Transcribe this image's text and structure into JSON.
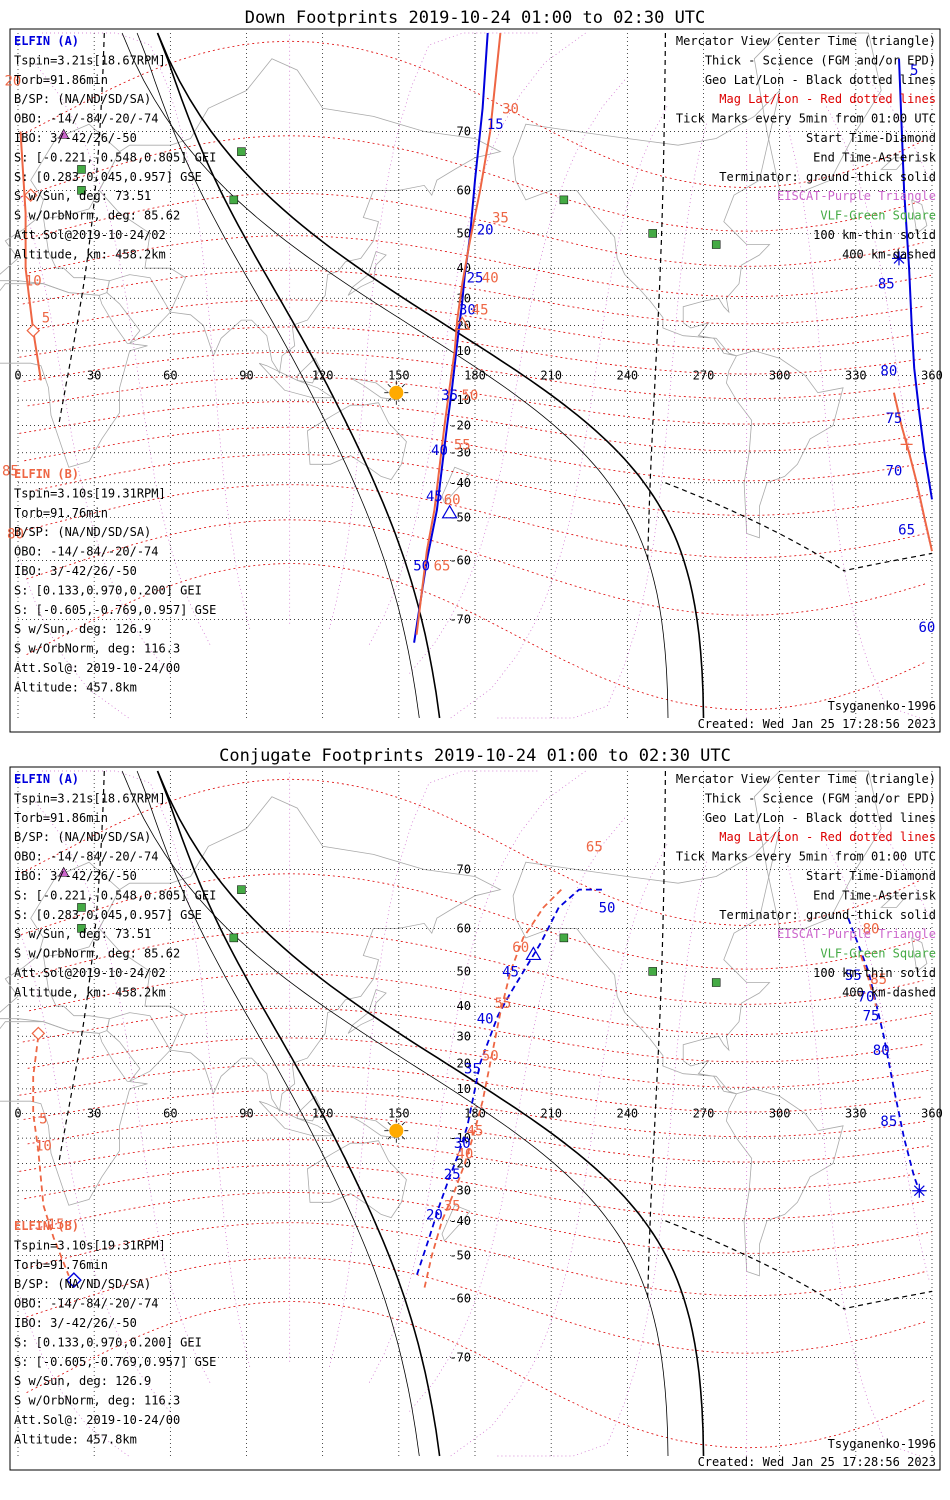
{
  "colors": {
    "elfin_a": "#0000dd",
    "elfin_b": "#ee6644",
    "geo_grid": "#000000",
    "mag_grid": "#dd0000",
    "eiscat": "#cc66cc",
    "vlf": "#44aa44",
    "sun": "#ffaa00",
    "coast": "#aaaaaa"
  },
  "chart_data": [
    {
      "type": "line",
      "title": "Down Footprints 2019-10-24 01:00 to 02:30 UTC",
      "projection": "mercator",
      "x_axis": {
        "range": [
          0,
          360
        ],
        "ticks": [
          0,
          30,
          60,
          90,
          120,
          150,
          180,
          210,
          240,
          270,
          300,
          330,
          360
        ]
      },
      "y_axis": {
        "range": [
          -80,
          80
        ],
        "ticks": [
          70,
          60,
          50,
          40,
          30,
          20,
          10,
          -10,
          -20,
          -30,
          -40,
          -50,
          -60,
          -70
        ]
      },
      "info_a": {
        "name": "ELFIN (A)",
        "lines": [
          "Tspin=3.21s[18.67RPM]",
          "Torb=91.86min",
          "B/SP: (NA/ND/SD/SA)",
          "OBO: -14/-84/-20/-74",
          "IBO: 3/-42/26/-50",
          "S: [-0.221,-0.548,0.805] GEI",
          "S: [0.283,0.045,0.957] GSE",
          "S w/Sun, deg: 73.51",
          "S w/OrbNorm, deg: 85.62",
          "Att.Sol@2019-10-24/02",
          "Altitude, km: 458.2km"
        ]
      },
      "info_b": {
        "name": "ELFIN (B)",
        "lines": [
          "Tspin=3.10s[19.31RPM]",
          "Torb=91.76min",
          "B/SP: (NA/ND/SD/SA)",
          "OBO: -14/-84/-20/-74",
          "IBO: 3/-42/26/-50",
          "S: [0.133,0.970,0.200] GEI",
          "S: [-0.605,-0.769,0.957] GSE",
          "S w/Sun, deg: 126.9",
          "S w/OrbNorm, deg: 116.3",
          "Att.Sol@: 2019-10-24/00",
          "Altitude: 457.8km"
        ]
      },
      "legend": [
        "Mercator View Center Time (triangle)",
        "Thick - Science (FGM and/or EPD)",
        "Geo Lat/Lon - Black dotted lines",
        "Mag Lat/Lon - Red dotted lines",
        "Tick Marks every 5min from 01:00 UTC",
        "Start Time-Diamond",
        "End Time-Asterisk",
        "Terminator: ground-thick solid",
        "EISCAT-Purple Triangle",
        "VLF-Green Square",
        "100 km-thin solid",
        "400 km-dashed"
      ],
      "model": "Tsyganenko-1996",
      "created": "Created: Wed Jan 25 17:28:56 2023",
      "series": [
        {
          "name": "ELFIN (A)",
          "color": "#0000dd",
          "style": "solid",
          "points": [
            [
              185,
              80
            ],
            [
              183,
              73
            ],
            [
              180,
              62
            ],
            [
              178,
              49
            ],
            [
              176,
              38
            ],
            [
              175,
              29
            ],
            [
              173,
              13
            ],
            [
              171,
              -5
            ],
            [
              169,
              -20
            ],
            [
              167,
              -35
            ],
            [
              165,
              -48
            ],
            [
              161,
              -60
            ],
            [
              156,
              -73
            ]
          ]
        },
        {
          "name": "ELFIN (A)",
          "color": "#0000dd",
          "style": "solid",
          "points": [
            [
              347,
              78
            ],
            [
              349,
              60
            ],
            [
              351,
              40
            ],
            [
              352,
              20
            ],
            [
              353,
              3
            ],
            [
              355,
              -15
            ],
            [
              357,
              -30
            ],
            [
              360,
              -45
            ]
          ]
        },
        {
          "name": "ELFIN (B)",
          "color": "#ee6644",
          "style": "solid",
          "points": [
            [
              190,
              80
            ],
            [
              186,
              70
            ],
            [
              182,
              60
            ],
            [
              178,
              48
            ],
            [
              175,
              35
            ],
            [
              173,
              22
            ],
            [
              172,
              10
            ],
            [
              170,
              -5
            ],
            [
              168,
              -20
            ],
            [
              166,
              -35
            ],
            [
              164,
              -48
            ],
            [
              161,
              -58
            ],
            [
              157,
              -72
            ]
          ]
        },
        {
          "name": "ELFIN (B)",
          "color": "#ee6644",
          "style": "solid",
          "points": [
            [
              1,
              70
            ],
            [
              3,
              55
            ],
            [
              3,
              40
            ],
            [
              6,
              18
            ],
            [
              8,
              5
            ],
            [
              9,
              -2
            ]
          ]
        },
        {
          "name": "ELFIN (B)",
          "color": "#ee6644",
          "style": "solid",
          "points": [
            [
              345,
              -7
            ],
            [
              348,
              -20
            ],
            [
              351,
              -30
            ],
            [
              354,
              -40
            ],
            [
              357,
              -50
            ],
            [
              360,
              -58
            ]
          ]
        }
      ],
      "tick_labels": [
        {
          "text": "15",
          "lon": 188,
          "lat": 71,
          "sat": "a"
        },
        {
          "text": "20",
          "lon": 184,
          "lat": 51,
          "sat": "a"
        },
        {
          "text": "25",
          "lon": 180,
          "lat": 37,
          "sat": "a"
        },
        {
          "text": "30",
          "lon": 177,
          "lat": 26,
          "sat": "a"
        },
        {
          "text": "35",
          "lon": 170,
          "lat": -8,
          "sat": "a"
        },
        {
          "text": "40",
          "lon": 166,
          "lat": -29,
          "sat": "a"
        },
        {
          "text": "45",
          "lon": 164,
          "lat": -44,
          "sat": "a"
        },
        {
          "text": "50",
          "lon": 159,
          "lat": -61,
          "sat": "a"
        },
        {
          "text": "85",
          "lon": 342,
          "lat": 35,
          "sat": "a"
        },
        {
          "text": "80",
          "lon": 343,
          "lat": 2,
          "sat": "a"
        },
        {
          "text": "75",
          "lon": 345,
          "lat": -17,
          "sat": "a"
        },
        {
          "text": "70",
          "lon": 345,
          "lat": -36,
          "sat": "a"
        },
        {
          "text": "65",
          "lon": 350,
          "lat": -53,
          "sat": "a"
        },
        {
          "text": "60",
          "lon": 358,
          "lat": -71,
          "sat": "a"
        },
        {
          "text": "30",
          "lon": 194,
          "lat": 73,
          "sat": "b"
        },
        {
          "text": "35",
          "lon": 190,
          "lat": 54,
          "sat": "b"
        },
        {
          "text": "40",
          "lon": 186,
          "lat": 37,
          "sat": "b"
        },
        {
          "text": "45",
          "lon": 182,
          "lat": 26,
          "sat": "b"
        },
        {
          "text": "50",
          "lon": 178,
          "lat": -8,
          "sat": "b"
        },
        {
          "text": "55",
          "lon": 175,
          "lat": -27,
          "sat": "b"
        },
        {
          "text": "60",
          "lon": 171,
          "lat": -45,
          "sat": "b"
        },
        {
          "text": "65",
          "lon": 167,
          "lat": -61,
          "sat": "b"
        },
        {
          "text": "20",
          "lon": -2,
          "lat": 76,
          "sat": "b"
        },
        {
          "text": "10",
          "lon": 6,
          "lat": 36,
          "sat": "b"
        },
        {
          "text": "5",
          "lon": 11,
          "lat": 23,
          "sat": "b"
        },
        {
          "text": "85",
          "lon": -3,
          "lat": -36,
          "sat": "b"
        },
        {
          "text": "80",
          "lon": -1,
          "lat": -54,
          "sat": "b"
        },
        {
          "text": "5",
          "lon": 353,
          "lat": 77,
          "sat": "a"
        }
      ]
    },
    {
      "type": "line",
      "title": "Conjugate Footprints 2019-10-24 01:00 to 02:30 UTC",
      "projection": "mercator",
      "x_axis": {
        "range": [
          0,
          360
        ],
        "ticks": [
          0,
          30,
          60,
          90,
          120,
          150,
          180,
          210,
          240,
          270,
          300,
          330,
          360
        ]
      },
      "y_axis": {
        "range": [
          -80,
          80
        ],
        "ticks": [
          70,
          60,
          50,
          40,
          30,
          20,
          10,
          -10,
          -20,
          -30,
          -40,
          -50,
          -60,
          -70
        ]
      },
      "info_a": {
        "name": "ELFIN (A)",
        "lines": [
          "Tspin=3.21s[18.67RPM]",
          "Torb=91.86min",
          "B/SP: (NA/ND/SD/SA)",
          "OBO: -14/-84/-20/-74",
          "IBO: 3/-42/26/-50",
          "S: [-0.221,-0.548,0.805] GEI",
          "S: [0.283,0.045,0.957] GSE",
          "S w/Sun, deg: 73.51",
          "S w/OrbNorm, deg: 85.62",
          "Att.Sol@2019-10-24/02",
          "Altitude, km: 458.2km"
        ]
      },
      "info_b": {
        "name": "ELFIN (B)",
        "lines": [
          "Tspin=3.10s[19.31RPM]",
          "Torb=91.76min",
          "B/SP: (NA/ND/SD/SA)",
          "OBO: -14/-84/-20/-74",
          "IBO: 3/-42/26/-50",
          "S: [0.133,0.970,0.200] GEI",
          "S: [-0.605,-0.769,0.957] GSE",
          "S w/Sun, deg: 126.9",
          "S w/OrbNorm, deg: 116.3",
          "Att.Sol@: 2019-10-24/00",
          "Altitude: 457.8km"
        ]
      },
      "legend": [
        "Mercator View Center Time (triangle)",
        "Thick - Science (FGM and/or EPD)",
        "Geo Lat/Lon - Black dotted lines",
        "Mag Lat/Lon - Red dotted lines",
        "Tick Marks every 5min from 01:00 UTC",
        "Start Time-Diamond",
        "End Time-Asterisk",
        "Terminator: ground-thick solid",
        "EISCAT-Purple Triangle",
        "VLF-Green Square",
        "100 km-thin solid",
        "400 km-dashed"
      ],
      "model": "Tsyganenko-1996",
      "created": "Created: Wed Jan 25 17:28:56 2023",
      "series": [
        {
          "name": "ELFIN (A)",
          "color": "#0000dd",
          "style": "dashed",
          "points": [
            [
              230,
              67
            ],
            [
              221,
              67
            ],
            [
              213,
              64
            ],
            [
              206,
              57
            ],
            [
              201,
              52
            ],
            [
              194,
              44
            ],
            [
              189,
              37
            ],
            [
              186,
              30
            ],
            [
              182,
              20
            ],
            [
              180,
              10
            ],
            [
              177,
              -5
            ],
            [
              174,
              -15
            ],
            [
              170,
              -25
            ],
            [
              166,
              -35
            ],
            [
              162,
              -45
            ],
            [
              157,
              -55
            ]
          ]
        },
        {
          "name": "ELFIN (A)",
          "color": "#0000dd",
          "style": "dashed",
          "points": [
            [
              327,
              62
            ],
            [
              335,
              50
            ],
            [
              341,
              30
            ],
            [
              345,
              10
            ],
            [
              349,
              -10
            ],
            [
              353,
              -25
            ],
            [
              355,
              -30
            ]
          ]
        },
        {
          "name": "ELFIN (B)",
          "color": "#ee6644",
          "style": "dashed",
          "points": [
            [
              214,
              67
            ],
            [
              207,
              64
            ],
            [
              199,
              58
            ],
            [
              194,
              50
            ],
            [
              190,
              38
            ],
            [
              186,
              20
            ],
            [
              183,
              5
            ],
            [
              179,
              -10
            ],
            [
              176,
              -20
            ],
            [
              172,
              -30
            ],
            [
              167,
              -40
            ],
            [
              163,
              -50
            ],
            [
              160,
              -58
            ]
          ]
        },
        {
          "name": "ELFIN (B)",
          "color": "#ee6644",
          "style": "dashed",
          "points": [
            [
              8,
              30
            ],
            [
              6,
              15
            ],
            [
              6,
              0
            ],
            [
              8,
              -15
            ],
            [
              10,
              -35
            ],
            [
              14,
              -45
            ],
            [
              20,
              -55
            ]
          ]
        },
        {
          "name": "ELFIN (B)",
          "color": "#ee6644",
          "style": "dashed",
          "points": [
            [
              332,
              54
            ],
            [
              335,
              48
            ],
            [
              338,
              40
            ]
          ]
        }
      ],
      "tick_labels": [
        {
          "text": "50",
          "lon": 232,
          "lat": 64,
          "sat": "a"
        },
        {
          "text": "45",
          "lon": 194,
          "lat": 50,
          "sat": "a"
        },
        {
          "text": "40",
          "lon": 184,
          "lat": 36,
          "sat": "a"
        },
        {
          "text": "35",
          "lon": 179,
          "lat": 18,
          "sat": "a"
        },
        {
          "text": "30",
          "lon": 175,
          "lat": -12,
          "sat": "a"
        },
        {
          "text": "25",
          "lon": 171,
          "lat": -24,
          "sat": "a"
        },
        {
          "text": "20",
          "lon": 164,
          "lat": -38,
          "sat": "a"
        },
        {
          "text": "55",
          "lon": 329,
          "lat": 49,
          "sat": "a"
        },
        {
          "text": "70",
          "lon": 334,
          "lat": 43,
          "sat": "a"
        },
        {
          "text": "75",
          "lon": 336,
          "lat": 37,
          "sat": "a"
        },
        {
          "text": "80",
          "lon": 340,
          "lat": 25,
          "sat": "a"
        },
        {
          "text": "85",
          "lon": 343,
          "lat": -3,
          "sat": "a"
        },
        {
          "text": "65",
          "lon": 227,
          "lat": 73,
          "sat": "b"
        },
        {
          "text": "60",
          "lon": 198,
          "lat": 56,
          "sat": "b"
        },
        {
          "text": "55",
          "lon": 191,
          "lat": 41,
          "sat": "b"
        },
        {
          "text": "50",
          "lon": 186,
          "lat": 23,
          "sat": "b"
        },
        {
          "text": "45",
          "lon": 180,
          "lat": -7,
          "sat": "b"
        },
        {
          "text": "40",
          "lon": 176,
          "lat": -16,
          "sat": "b"
        },
        {
          "text": "35",
          "lon": 171,
          "lat": -35,
          "sat": "b"
        },
        {
          "text": "5",
          "lon": 10,
          "lat": -2,
          "sat": "b"
        },
        {
          "text": "10",
          "lon": 10,
          "lat": -13,
          "sat": "b"
        },
        {
          "text": "15",
          "lon": 15,
          "lat": -41,
          "sat": "b"
        },
        {
          "text": "80",
          "lon": 336,
          "lat": 60,
          "sat": "b"
        },
        {
          "text": "85",
          "lon": 339,
          "lat": 48,
          "sat": "b"
        }
      ]
    }
  ]
}
